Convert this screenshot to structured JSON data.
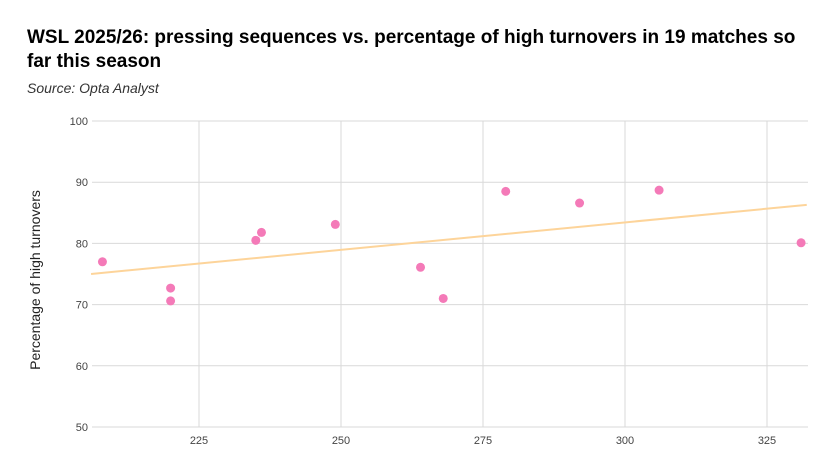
{
  "chart_data": {
    "type": "scatter",
    "title": "WSL 2025/26: pressing sequences vs. percentage of high turnovers in 19 matches so far this season",
    "subtitle": "Source: Opta Analyst",
    "xlabel": "",
    "ylabel": "Percentage of high turnovers",
    "xlim": [
      206,
      332
    ],
    "ylim": [
      50,
      100
    ],
    "xticks": [
      225,
      250,
      275,
      300,
      325
    ],
    "yticks": [
      50,
      60,
      70,
      80,
      90,
      100
    ],
    "grid": true,
    "points": [
      {
        "x": 208,
        "y": 77.0
      },
      {
        "x": 220,
        "y": 72.7
      },
      {
        "x": 220,
        "y": 70.6
      },
      {
        "x": 235,
        "y": 80.5
      },
      {
        "x": 236,
        "y": 81.8
      },
      {
        "x": 249,
        "y": 83.1
      },
      {
        "x": 264,
        "y": 76.1
      },
      {
        "x": 268,
        "y": 71.0
      },
      {
        "x": 279,
        "y": 88.5
      },
      {
        "x": 292,
        "y": 86.6
      },
      {
        "x": 306,
        "y": 88.7
      },
      {
        "x": 331,
        "y": 80.1
      }
    ],
    "trendline": {
      "type": "linear",
      "start": {
        "x": 206,
        "y": 75.0
      },
      "end": {
        "x": 332,
        "y": 86.3
      }
    },
    "colors": {
      "points": "#f47ab8",
      "trendline": "#fdd49a",
      "grid": "#d9d9d9"
    }
  }
}
